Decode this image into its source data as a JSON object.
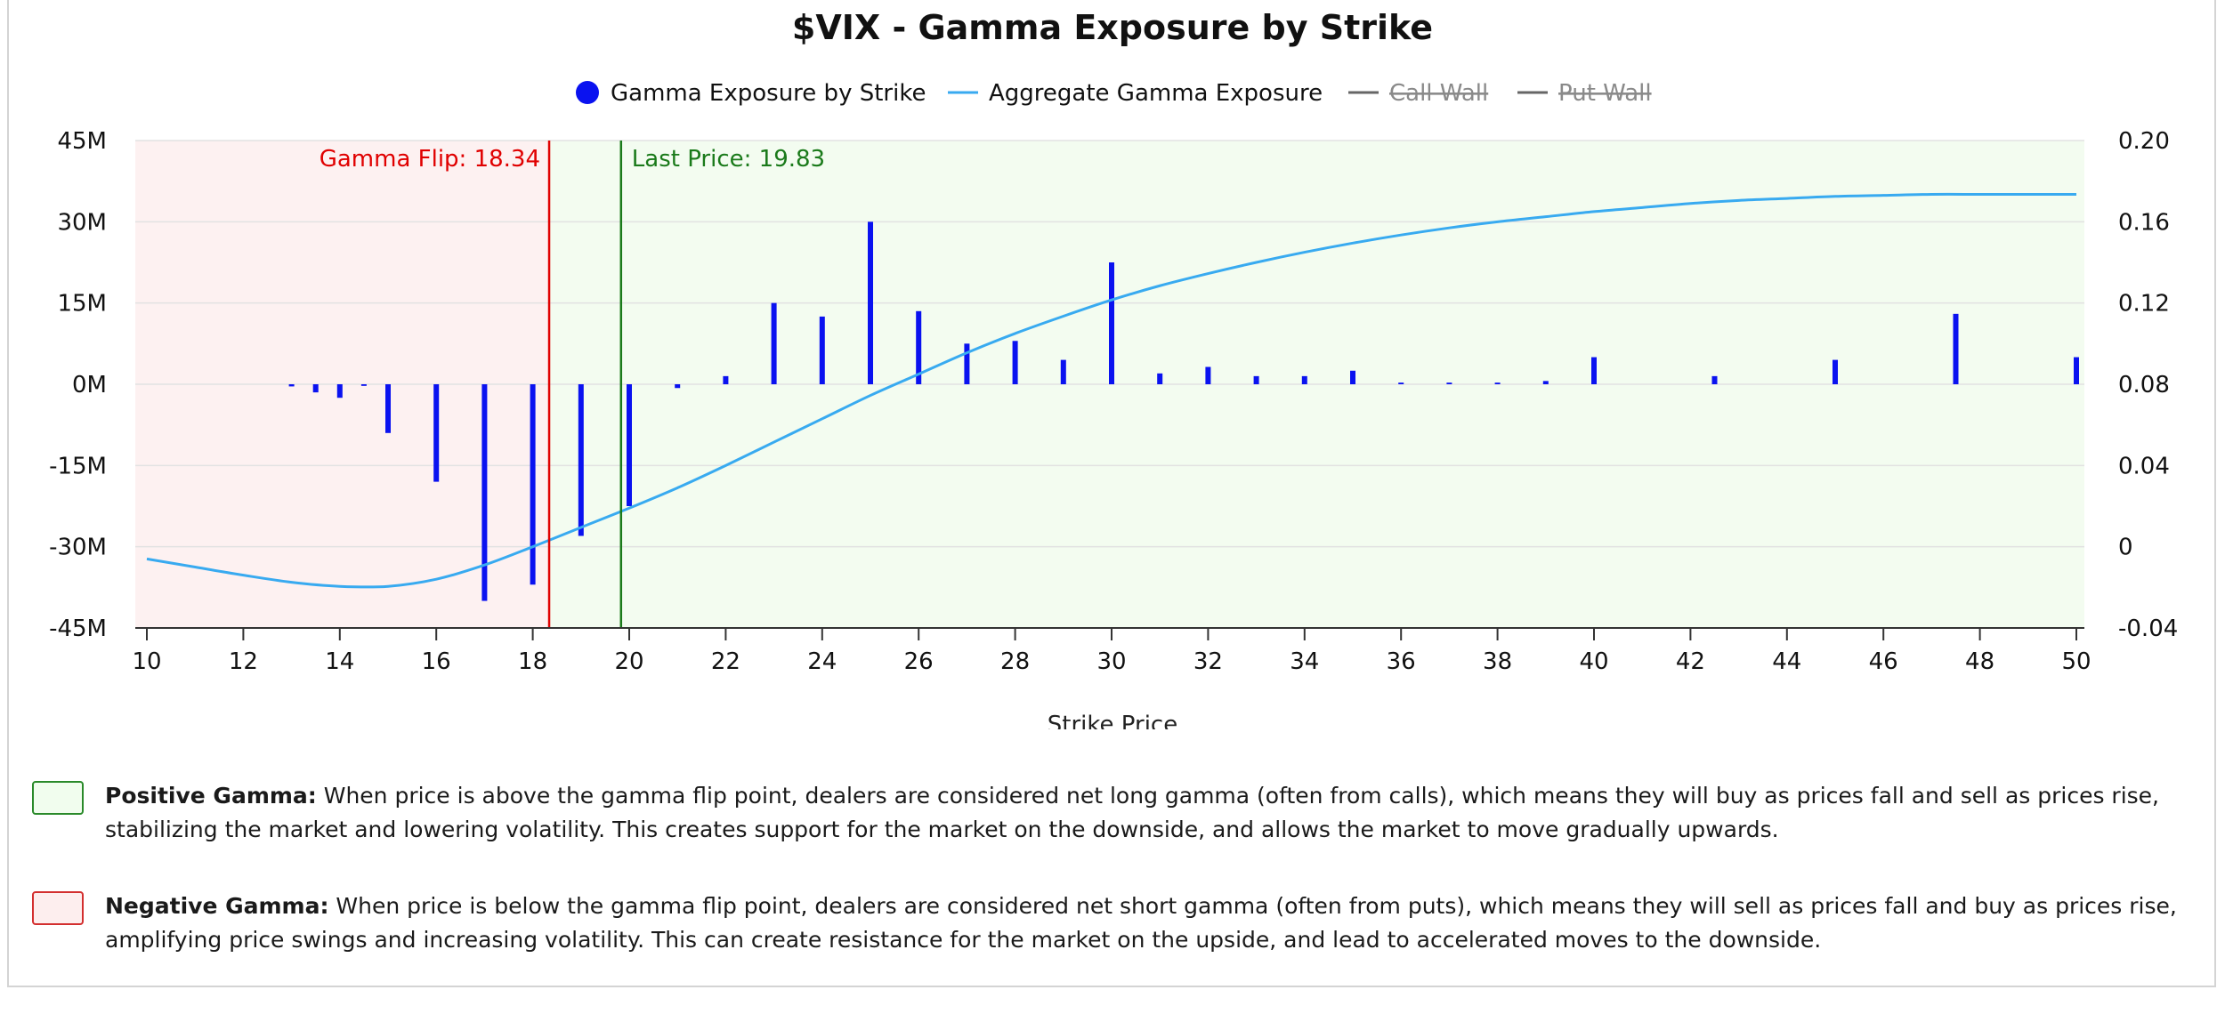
{
  "chart_data": {
    "type": "bar+line",
    "title": "$VIX - Gamma Exposure by Strike",
    "xlabel": "Strike Price",
    "xlim": [
      10,
      50
    ],
    "x_ticks": [
      "10",
      "12",
      "14",
      "16",
      "18",
      "20",
      "22",
      "24",
      "26",
      "28",
      "30",
      "32",
      "34",
      "36",
      "38",
      "40",
      "42",
      "44",
      "46",
      "48",
      "50"
    ],
    "y_left_ticks": [
      "45M",
      "30M",
      "15M",
      "0M",
      "-15M",
      "-30M",
      "-45M"
    ],
    "y_left_lim": [
      -45000000,
      45000000
    ],
    "y_right_ticks": [
      "0.20",
      "0.16",
      "0.12",
      "0.08",
      "0.04",
      "0",
      "-0.04"
    ],
    "y_right_lim": [
      -0.04,
      0.2
    ],
    "legend": {
      "placement": "top-center",
      "items": [
        {
          "label": "Gamma Exposure by Strike",
          "marker": "dot",
          "color": "#0a12f0",
          "hidden": false
        },
        {
          "label": "Aggregate Gamma Exposure",
          "marker": "line",
          "color": "#38aaf0",
          "hidden": false
        },
        {
          "label": "Call Wall",
          "marker": "line",
          "color": "#666666",
          "hidden": true
        },
        {
          "label": "Put Wall",
          "marker": "line",
          "color": "#666666",
          "hidden": true
        }
      ]
    },
    "series": [
      {
        "name": "Gamma Exposure by Strike",
        "type": "bar",
        "axis": "left",
        "color": "#0a12f0",
        "points": [
          {
            "x": 13,
            "y": -400000
          },
          {
            "x": 13.5,
            "y": -1500000
          },
          {
            "x": 14,
            "y": -2500000
          },
          {
            "x": 14.5,
            "y": -300000
          },
          {
            "x": 15,
            "y": -9000000
          },
          {
            "x": 16,
            "y": -18000000
          },
          {
            "x": 17,
            "y": -40000000
          },
          {
            "x": 18,
            "y": -37000000
          },
          {
            "x": 19,
            "y": -28000000
          },
          {
            "x": 20,
            "y": -22500000
          },
          {
            "x": 21,
            "y": -700000
          },
          {
            "x": 22,
            "y": 1500000
          },
          {
            "x": 23,
            "y": 15000000
          },
          {
            "x": 24,
            "y": 12500000
          },
          {
            "x": 25,
            "y": 30000000
          },
          {
            "x": 26,
            "y": 13500000
          },
          {
            "x": 27,
            "y": 7500000
          },
          {
            "x": 28,
            "y": 8000000
          },
          {
            "x": 29,
            "y": 4500000
          },
          {
            "x": 30,
            "y": 22500000
          },
          {
            "x": 31,
            "y": 2000000
          },
          {
            "x": 32,
            "y": 3200000
          },
          {
            "x": 33,
            "y": 1500000
          },
          {
            "x": 34,
            "y": 1500000
          },
          {
            "x": 35,
            "y": 2500000
          },
          {
            "x": 36,
            "y": 300000
          },
          {
            "x": 37,
            "y": 300000
          },
          {
            "x": 38,
            "y": 300000
          },
          {
            "x": 39,
            "y": 600000
          },
          {
            "x": 40,
            "y": 5000000
          },
          {
            "x": 42.5,
            "y": 1500000
          },
          {
            "x": 45,
            "y": 4500000
          },
          {
            "x": 47.5,
            "y": 13000000
          },
          {
            "x": 50,
            "y": 5000000
          }
        ]
      },
      {
        "name": "Aggregate Gamma Exposure",
        "type": "line",
        "axis": "right",
        "color": "#38aaf0",
        "points": [
          {
            "x": 10,
            "y": -0.006
          },
          {
            "x": 11,
            "y": -0.01
          },
          {
            "x": 12,
            "y": -0.014
          },
          {
            "x": 13,
            "y": -0.0175
          },
          {
            "x": 14,
            "y": -0.0195
          },
          {
            "x": 15,
            "y": -0.0195
          },
          {
            "x": 16,
            "y": -0.016
          },
          {
            "x": 17,
            "y": -0.009
          },
          {
            "x": 18,
            "y": 0.0
          },
          {
            "x": 19,
            "y": 0.0095
          },
          {
            "x": 20,
            "y": 0.019
          },
          {
            "x": 21,
            "y": 0.029
          },
          {
            "x": 22,
            "y": 0.04
          },
          {
            "x": 23,
            "y": 0.0515
          },
          {
            "x": 24,
            "y": 0.063
          },
          {
            "x": 25,
            "y": 0.0745
          },
          {
            "x": 26,
            "y": 0.085
          },
          {
            "x": 27,
            "y": 0.0955
          },
          {
            "x": 28,
            "y": 0.105
          },
          {
            "x": 29,
            "y": 0.1135
          },
          {
            "x": 30,
            "y": 0.1215
          },
          {
            "x": 31,
            "y": 0.1285
          },
          {
            "x": 32,
            "y": 0.1345
          },
          {
            "x": 33,
            "y": 0.14
          },
          {
            "x": 34,
            "y": 0.145
          },
          {
            "x": 35,
            "y": 0.1495
          },
          {
            "x": 36,
            "y": 0.1535
          },
          {
            "x": 37,
            "y": 0.157
          },
          {
            "x": 38,
            "y": 0.16
          },
          {
            "x": 39,
            "y": 0.1625
          },
          {
            "x": 40,
            "y": 0.165
          },
          {
            "x": 41,
            "y": 0.167
          },
          {
            "x": 42,
            "y": 0.169
          },
          {
            "x": 43,
            "y": 0.1705
          },
          {
            "x": 44,
            "y": 0.1715
          },
          {
            "x": 45,
            "y": 0.1725
          },
          {
            "x": 46,
            "y": 0.173
          },
          {
            "x": 47,
            "y": 0.1735
          },
          {
            "x": 48,
            "y": 0.1735
          },
          {
            "x": 49,
            "y": 0.1735
          },
          {
            "x": 50,
            "y": 0.1735
          }
        ]
      }
    ],
    "markers": [
      {
        "name": "gamma-flip",
        "label": "Gamma Flip: 18.34",
        "x": 18.34,
        "color": "#e00000"
      },
      {
        "name": "last-price",
        "label": "Last Price: 19.83",
        "x": 19.83,
        "color": "#1a7a1a"
      }
    ],
    "regions": [
      {
        "name": "negative-gamma",
        "from": 10,
        "to": 18.34,
        "color": "#fdf1f1"
      },
      {
        "name": "positive-gamma",
        "from": 18.34,
        "to": 50,
        "color": "#f3fcf0"
      }
    ],
    "grid": true
  },
  "notes": {
    "positive": {
      "label": "Positive Gamma:",
      "text": " When price is above the gamma flip point, dealers are considered net long gamma (often from calls), which means they will buy as prices fall and sell as prices rise, stabilizing the market and lowering volatility. This creates support for the market on the downside, and allows the market to move gradually upwards."
    },
    "negative": {
      "label": "Negative Gamma:",
      "text": " When price is below the gamma flip point, dealers are considered net short gamma (often from puts), which means they will sell as prices fall and buy as prices rise, amplifying price swings and increasing volatility. This can create resistance for the market on the upside, and lead to accelerated moves to the downside."
    }
  }
}
